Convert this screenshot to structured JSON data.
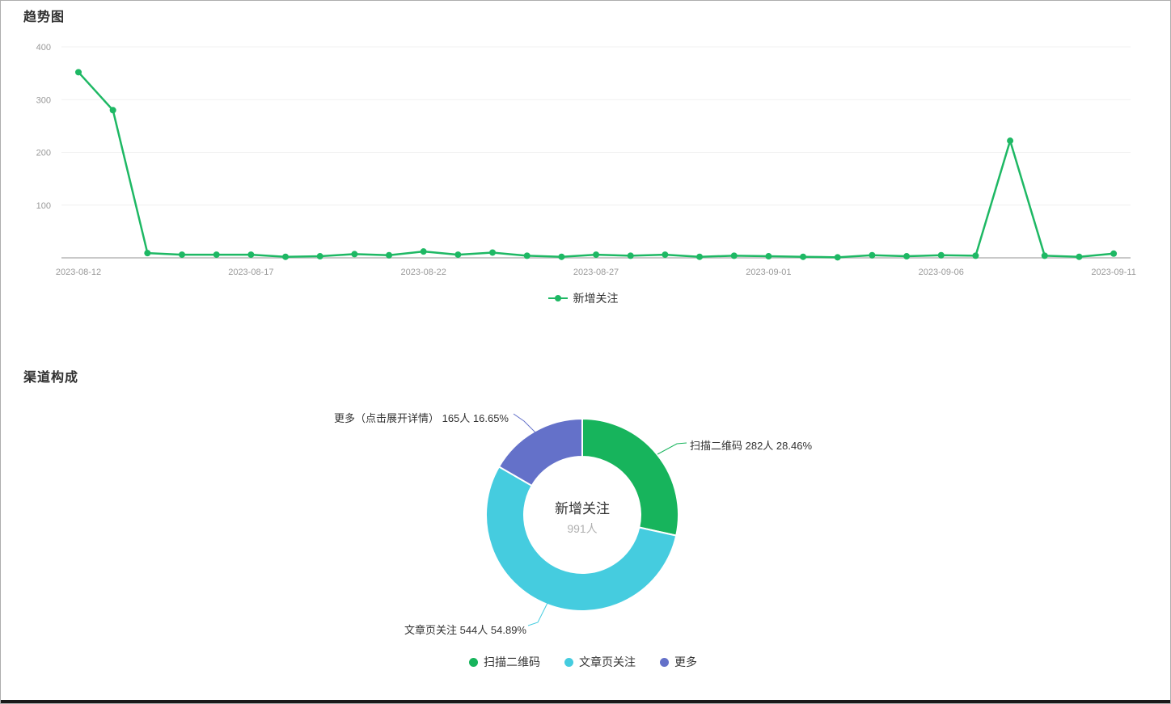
{
  "page": {
    "trend_section_title": "趋势图",
    "channel_section_title": "渠道构成"
  },
  "chart_data": [
    {
      "type": "line",
      "title": "趋势图",
      "x": [
        "2023-08-12",
        "2023-08-13",
        "2023-08-14",
        "2023-08-15",
        "2023-08-16",
        "2023-08-17",
        "2023-08-18",
        "2023-08-19",
        "2023-08-20",
        "2023-08-21",
        "2023-08-22",
        "2023-08-23",
        "2023-08-24",
        "2023-08-25",
        "2023-08-26",
        "2023-08-27",
        "2023-08-28",
        "2023-08-29",
        "2023-08-30",
        "2023-08-31",
        "2023-09-01",
        "2023-09-02",
        "2023-09-03",
        "2023-09-04",
        "2023-09-05",
        "2023-09-06",
        "2023-09-07",
        "2023-09-08",
        "2023-09-09",
        "2023-09-10",
        "2023-09-11"
      ],
      "x_tick_labels": [
        "2023-08-12",
        "2023-08-17",
        "2023-08-22",
        "2023-08-27",
        "2023-09-01",
        "2023-09-06",
        "2023-09-11"
      ],
      "x_tick_interval": 5,
      "series": [
        {
          "name": "新增关注",
          "color": "#1eb864",
          "values": [
            352,
            280,
            9,
            6,
            6,
            6,
            2,
            3,
            7,
            5,
            12,
            6,
            10,
            4,
            2,
            6,
            4,
            6,
            2,
            4,
            3,
            2,
            1,
            5,
            3,
            5,
            4,
            222,
            4,
            2,
            8
          ]
        }
      ],
      "ylim": [
        0,
        400
      ],
      "y_ticks": [
        100,
        200,
        300,
        400
      ],
      "grid": true,
      "legend_position": "bottom",
      "axis_color": "#c9c9c9",
      "grid_color": "#f0f0f0",
      "tick_label_color": "#999999"
    },
    {
      "type": "pie",
      "title": "渠道构成",
      "center_title": "新增关注",
      "center_value_text": "991人",
      "total": 991,
      "unit": "人",
      "slices": [
        {
          "name": "扫描二维码",
          "callout": "扫描二维码",
          "value": 282,
          "pct": "28.46",
          "color": "#17b45c"
        },
        {
          "name": "文章页关注",
          "callout": "文章页关注",
          "value": 544,
          "pct": "54.89",
          "color": "#45ccdf"
        },
        {
          "name": "更多",
          "callout": "更多（点击展开详情）",
          "value": 165,
          "pct": "16.65",
          "color": "#6471c9"
        }
      ],
      "legend_position": "bottom"
    }
  ]
}
